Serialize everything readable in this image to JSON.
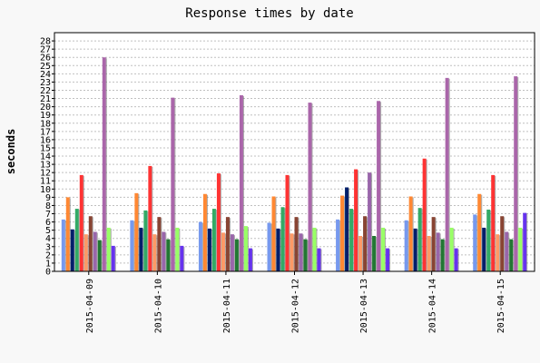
{
  "chart_data": {
    "type": "bar",
    "title": "Response times by date",
    "xlabel": "",
    "ylabel": "seconds",
    "ylim": [
      0,
      29
    ],
    "yticks": [
      0,
      1,
      2,
      3,
      4,
      5,
      6,
      7,
      8,
      9,
      10,
      11,
      12,
      13,
      14,
      15,
      16,
      17,
      18,
      19,
      20,
      21,
      22,
      23,
      24,
      25,
      26,
      27,
      28
    ],
    "grid": true,
    "legend": "none",
    "categories": [
      "2015-04-09",
      "2015-04-10",
      "2015-04-11",
      "2015-04-12",
      "2015-04-13",
      "2015-04-14",
      "2015-04-15"
    ],
    "series": [
      {
        "color": "#7799ee",
        "values": [
          6.3,
          6.2,
          6.0,
          5.9,
          6.3,
          6.2,
          6.9
        ]
      },
      {
        "color": "#ff8833",
        "values": [
          9.0,
          9.5,
          9.4,
          9.1,
          9.2,
          9.1,
          9.4
        ]
      },
      {
        "color": "#001f6b",
        "values": [
          5.1,
          5.3,
          5.2,
          5.2,
          10.2,
          5.2,
          5.3
        ]
      },
      {
        "color": "#33aa66",
        "values": [
          7.6,
          7.4,
          7.6,
          7.8,
          7.6,
          7.7,
          7.5
        ]
      },
      {
        "color": "#ff3333",
        "values": [
          11.7,
          12.8,
          11.9,
          11.7,
          12.4,
          13.7,
          11.7
        ]
      },
      {
        "color": "#ff9966",
        "values": [
          4.5,
          4.5,
          4.7,
          4.6,
          4.3,
          4.3,
          4.5
        ]
      },
      {
        "color": "#884433",
        "values": [
          6.7,
          6.6,
          6.6,
          6.6,
          6.7,
          6.6,
          6.7
        ]
      },
      {
        "color": "#9966aa",
        "values": [
          4.8,
          4.8,
          4.5,
          4.6,
          12.0,
          4.7,
          4.8
        ]
      },
      {
        "color": "#227733",
        "values": [
          3.8,
          3.9,
          3.9,
          3.9,
          4.3,
          3.9,
          3.9
        ]
      },
      {
        "color": "#aa66aa",
        "values": [
          26.0,
          21.1,
          21.4,
          20.5,
          20.7,
          23.5,
          23.7
        ]
      },
      {
        "color": "#99ff66",
        "values": [
          5.3,
          5.3,
          5.5,
          5.3,
          5.3,
          5.3,
          5.3
        ]
      },
      {
        "color": "#6633ee",
        "values": [
          3.1,
          3.1,
          2.8,
          2.8,
          2.8,
          2.8,
          7.1
        ]
      }
    ]
  }
}
